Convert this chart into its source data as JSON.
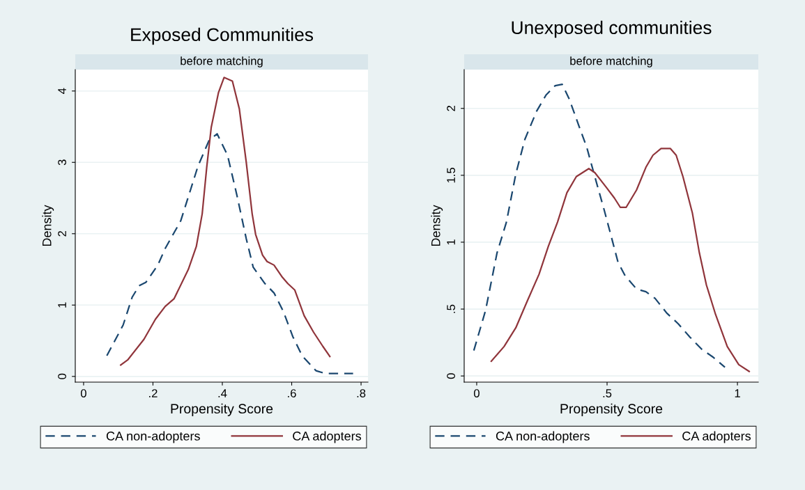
{
  "chart_data": [
    {
      "type": "line",
      "title": "Exposed Communities",
      "subtitle": "before matching",
      "xlabel": "Propensity Score",
      "ylabel": "Density",
      "xlim": [
        -0.024,
        0.82
      ],
      "ylim": [
        -0.08,
        4.3
      ],
      "xticks": [
        0,
        {
          "value": 0.2,
          "label": ".2"
        },
        {
          "value": 0.4,
          "label": ".4"
        },
        {
          "value": 0.6,
          "label": ".6"
        },
        {
          "value": 0.8,
          "label": ".8"
        }
      ],
      "yticks": [
        0,
        1,
        2,
        3,
        4
      ],
      "grid": "y",
      "legend": "bottom",
      "series": [
        {
          "name": "CA non-adopters",
          "color": "#1a476f",
          "line_style": "dashed",
          "x": [
            0.067,
            0.114,
            0.14,
            0.16,
            0.18,
            0.214,
            0.235,
            0.28,
            0.308,
            0.33,
            0.362,
            0.385,
            0.415,
            0.442,
            0.469,
            0.489,
            0.523,
            0.549,
            0.576,
            0.603,
            0.63,
            0.67,
            0.697,
            0.777
          ],
          "values": [
            0.29,
            0.72,
            1.11,
            1.27,
            1.32,
            1.56,
            1.79,
            2.18,
            2.61,
            2.95,
            3.31,
            3.4,
            3.1,
            2.54,
            1.93,
            1.53,
            1.3,
            1.17,
            0.91,
            0.56,
            0.29,
            0.08,
            0.04,
            0.04
          ]
        },
        {
          "name": "CA adopters",
          "color": "#90353b",
          "line_style": "solid",
          "x": [
            0.107,
            0.127,
            0.174,
            0.207,
            0.235,
            0.261,
            0.302,
            0.325,
            0.342,
            0.355,
            0.368,
            0.389,
            0.405,
            0.429,
            0.449,
            0.469,
            0.486,
            0.496,
            0.516,
            0.529,
            0.549,
            0.573,
            0.589,
            0.609,
            0.636,
            0.663,
            0.69,
            0.71
          ],
          "values": [
            0.16,
            0.23,
            0.52,
            0.8,
            0.98,
            1.09,
            1.5,
            1.82,
            2.28,
            2.93,
            3.49,
            3.98,
            4.19,
            4.14,
            3.75,
            3.0,
            2.28,
            1.99,
            1.7,
            1.61,
            1.56,
            1.39,
            1.3,
            1.21,
            0.85,
            0.62,
            0.42,
            0.28
          ]
        }
      ]
    },
    {
      "type": "line",
      "title": "Unexposed communities",
      "subtitle": "before matching",
      "xlabel": "Propensity Score",
      "ylabel": "Density",
      "xlim": [
        -0.048,
        1.08
      ],
      "ylim": [
        -0.046,
        2.29
      ],
      "xticks": [
        0,
        {
          "value": 0.5,
          "label": ".5"
        },
        1
      ],
      "yticks": [
        0,
        {
          "value": 0.5,
          "label": ".5"
        },
        1,
        1.5,
        2
      ],
      "grid": "y",
      "legend": "bottom",
      "series": [
        {
          "name": "CA non-adopters",
          "color": "#1a476f",
          "line_style": "dashed",
          "x": [
            -0.011,
            0.034,
            0.078,
            0.114,
            0.15,
            0.185,
            0.23,
            0.266,
            0.301,
            0.328,
            0.355,
            0.39,
            0.422,
            0.453,
            0.489,
            0.515,
            0.542,
            0.569,
            0.613,
            0.649,
            0.684,
            0.729,
            0.773,
            0.818,
            0.863,
            0.907,
            0.952
          ],
          "values": [
            0.19,
            0.49,
            0.92,
            1.15,
            1.51,
            1.77,
            1.98,
            2.1,
            2.17,
            2.18,
            2.07,
            1.88,
            1.71,
            1.49,
            1.24,
            1.05,
            0.85,
            0.75,
            0.65,
            0.63,
            0.58,
            0.47,
            0.39,
            0.29,
            0.2,
            0.14,
            0.065
          ]
        },
        {
          "name": "CA adopters",
          "color": "#90353b",
          "line_style": "solid",
          "x": [
            0.056,
            0.105,
            0.15,
            0.194,
            0.239,
            0.275,
            0.31,
            0.346,
            0.382,
            0.43,
            0.453,
            0.497,
            0.528,
            0.551,
            0.573,
            0.613,
            0.649,
            0.676,
            0.707,
            0.743,
            0.765,
            0.791,
            0.827,
            0.854,
            0.881,
            0.916,
            0.961,
            1.005,
            1.045
          ],
          "values": [
            0.11,
            0.22,
            0.36,
            0.56,
            0.76,
            0.97,
            1.15,
            1.37,
            1.49,
            1.55,
            1.52,
            1.41,
            1.33,
            1.26,
            1.26,
            1.39,
            1.56,
            1.65,
            1.7,
            1.7,
            1.65,
            1.49,
            1.22,
            0.92,
            0.68,
            0.46,
            0.22,
            0.085,
            0.034
          ]
        }
      ]
    }
  ]
}
